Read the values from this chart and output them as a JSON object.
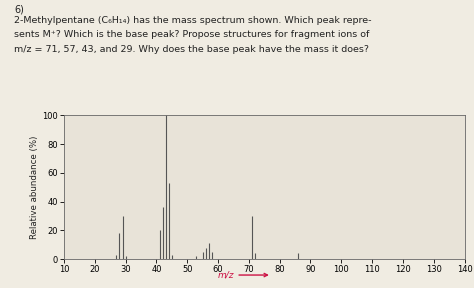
{
  "title_number": "6)",
  "title_line1": "2-Methylpentane (C₆H₁₄) has the mass spectrum shown. Which peak repre-",
  "title_line2": "sents M⁺? Which is the base peak? Propose structures for fragment ions of",
  "title_line3": "m/z = 71, 57, 43, and 29. Why does the base peak have the mass it does?",
  "peaks": [
    {
      "mz": 27,
      "rel": 3
    },
    {
      "mz": 28,
      "rel": 18
    },
    {
      "mz": 29,
      "rel": 30
    },
    {
      "mz": 30,
      "rel": 2
    },
    {
      "mz": 41,
      "rel": 20
    },
    {
      "mz": 42,
      "rel": 36
    },
    {
      "mz": 43,
      "rel": 100
    },
    {
      "mz": 44,
      "rel": 53
    },
    {
      "mz": 45,
      "rel": 3
    },
    {
      "mz": 53,
      "rel": 2
    },
    {
      "mz": 55,
      "rel": 5
    },
    {
      "mz": 56,
      "rel": 8
    },
    {
      "mz": 57,
      "rel": 11
    },
    {
      "mz": 58,
      "rel": 5
    },
    {
      "mz": 71,
      "rel": 30
    },
    {
      "mz": 72,
      "rel": 4
    },
    {
      "mz": 86,
      "rel": 4
    }
  ],
  "ylabel": "Relative abundance (%)",
  "xlabel": "m/z",
  "xlim": [
    10,
    140
  ],
  "ylim": [
    0,
    100
  ],
  "xticks": [
    10,
    20,
    30,
    40,
    50,
    60,
    70,
    80,
    90,
    100,
    110,
    120,
    130,
    140
  ],
  "yticks": [
    0,
    20,
    40,
    60,
    80,
    100
  ],
  "bar_color": "#555555",
  "bg_color": "#e8e3d8",
  "arrow_color": "#cc1144",
  "text_color": "#222222",
  "figure_bg": "#f0ece2"
}
